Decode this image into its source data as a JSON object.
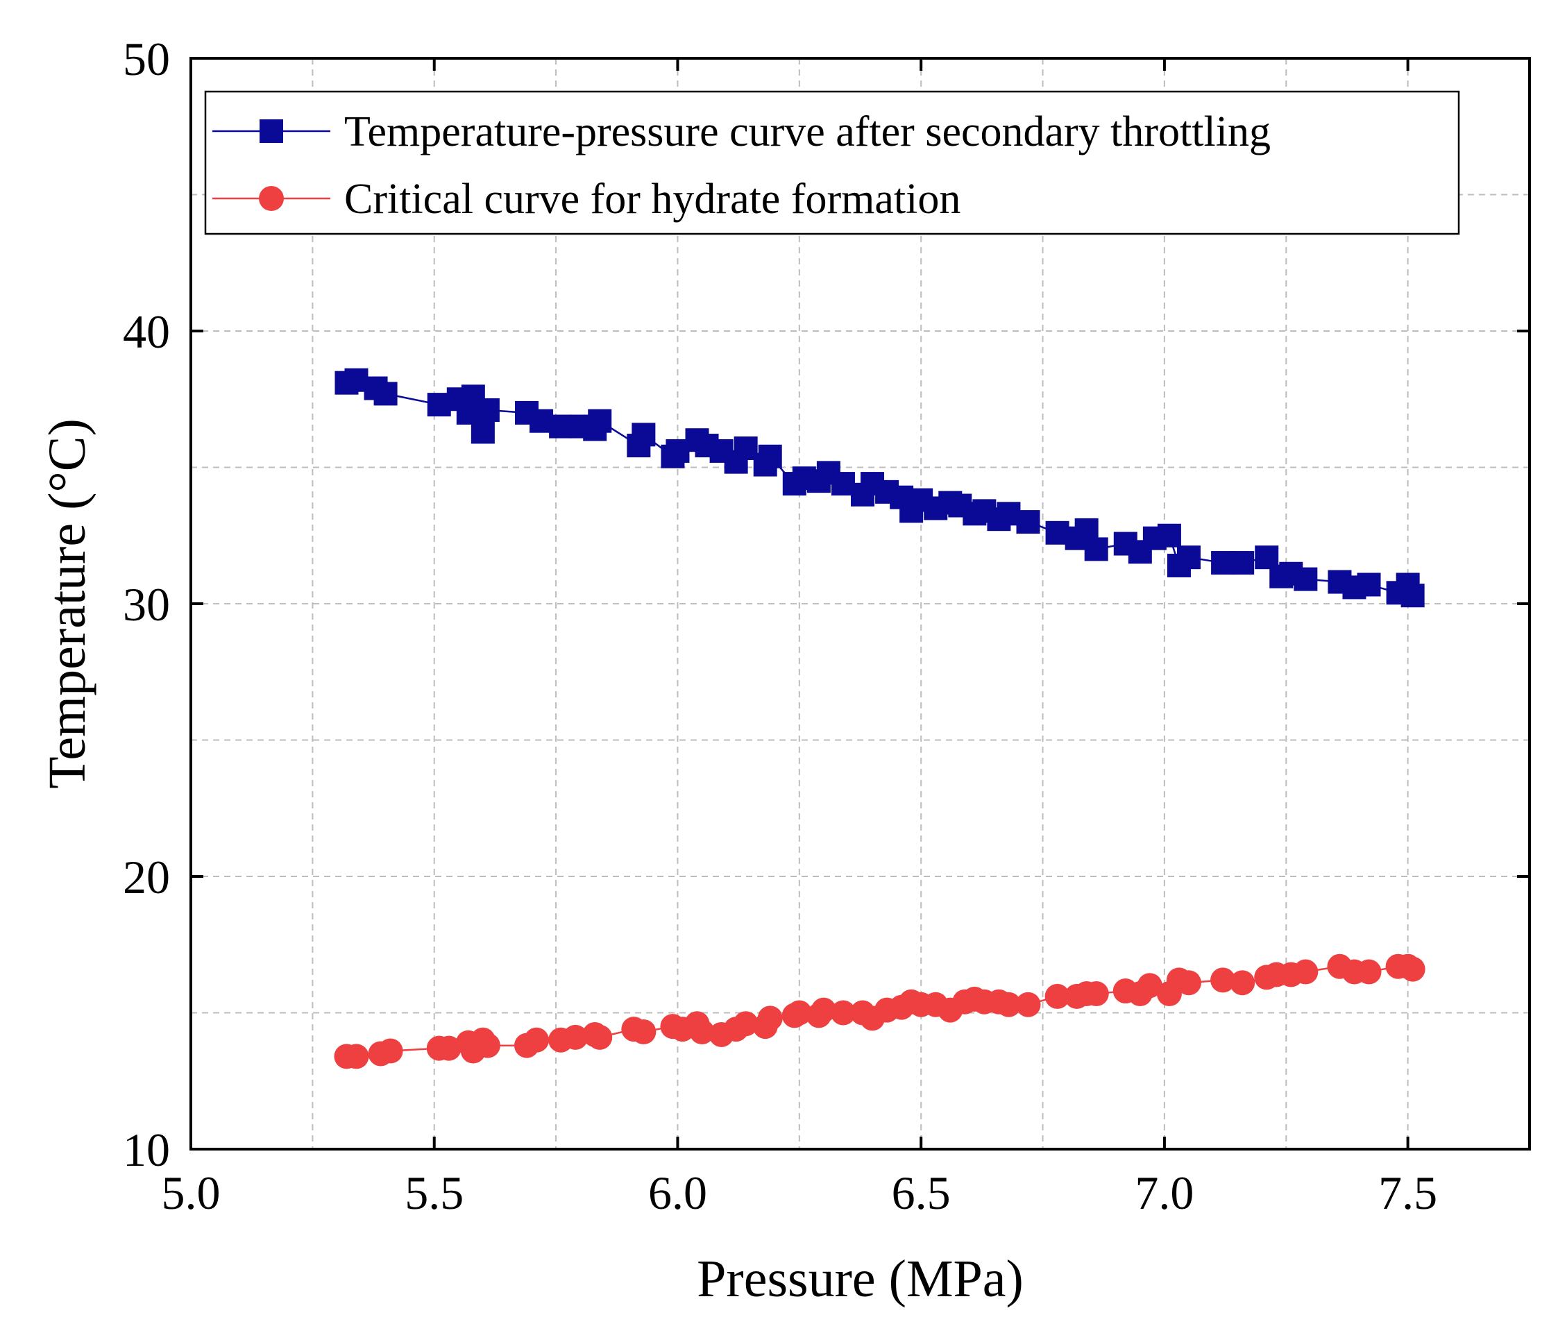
{
  "chart_data": {
    "type": "line",
    "title": "",
    "xlabel": "Pressure (MPa)",
    "ylabel": "Temperature (°C)",
    "xlim": [
      5.0,
      7.75
    ],
    "ylim": [
      10,
      50
    ],
    "x_ticks": [
      5.0,
      5.5,
      6.0,
      6.5,
      7.0,
      7.5
    ],
    "x_tick_labels": [
      "5.0",
      "5.5",
      "6.0",
      "6.5",
      "7.0",
      "7.5"
    ],
    "y_ticks": [
      10,
      20,
      30,
      40,
      50
    ],
    "y_tick_labels": [
      "10",
      "20",
      "30",
      "40",
      "50"
    ],
    "x_grid": [
      5.25,
      5.5,
      5.75,
      6.0,
      6.25,
      6.5,
      6.75,
      7.0,
      7.25,
      7.5
    ],
    "y_grid": [
      15,
      20,
      25,
      30,
      35,
      40,
      45
    ],
    "grid": true,
    "legend_position": "top",
    "series": [
      {
        "name": "Temperature-pressure curve after secondary throttling",
        "color": "#0a0a96",
        "marker": "square",
        "x": [
          5.32,
          5.34,
          5.38,
          5.4,
          5.51,
          5.55,
          5.57,
          5.58,
          5.6,
          5.61,
          5.69,
          5.72,
          5.76,
          5.8,
          5.83,
          5.84,
          5.92,
          5.93,
          5.99,
          6.0,
          6.04,
          6.06,
          6.09,
          6.12,
          6.14,
          6.18,
          6.19,
          6.24,
          6.26,
          6.29,
          6.31,
          6.34,
          6.38,
          6.4,
          6.43,
          6.46,
          6.48,
          6.5,
          6.53,
          6.56,
          6.58,
          6.61,
          6.63,
          6.66,
          6.68,
          6.72,
          6.78,
          6.82,
          6.84,
          6.86,
          6.92,
          6.95,
          6.98,
          7.01,
          7.03,
          7.05,
          7.12,
          7.16,
          7.21,
          7.24,
          7.26,
          7.29,
          7.36,
          7.39,
          7.42,
          7.48,
          7.5,
          7.51
        ],
        "values": [
          38.1,
          38.2,
          37.9,
          37.7,
          37.3,
          37.5,
          37.0,
          37.6,
          36.3,
          37.1,
          37.0,
          36.7,
          36.5,
          36.5,
          36.4,
          36.7,
          35.8,
          36.2,
          35.4,
          35.6,
          36.0,
          35.8,
          35.6,
          35.2,
          35.7,
          35.1,
          35.4,
          34.4,
          34.6,
          34.5,
          34.8,
          34.4,
          34.0,
          34.4,
          34.1,
          33.9,
          33.4,
          33.8,
          33.5,
          33.7,
          33.6,
          33.3,
          33.4,
          33.1,
          33.3,
          33.0,
          32.6,
          32.4,
          32.7,
          32.0,
          32.2,
          31.9,
          32.4,
          32.5,
          31.4,
          31.7,
          31.5,
          31.5,
          31.7,
          31.0,
          31.1,
          30.9,
          30.8,
          30.6,
          30.7,
          30.4,
          30.7,
          30.3
        ]
      },
      {
        "name": "Critical curve for hydrate formation",
        "color": "#ee4040",
        "marker": "circle",
        "x": [
          5.32,
          5.34,
          5.39,
          5.41,
          5.51,
          5.53,
          5.57,
          5.58,
          5.6,
          5.61,
          5.69,
          5.71,
          5.76,
          5.79,
          5.83,
          5.84,
          5.91,
          5.93,
          5.99,
          6.01,
          6.04,
          6.05,
          6.09,
          6.12,
          6.14,
          6.18,
          6.19,
          6.24,
          6.25,
          6.29,
          6.3,
          6.34,
          6.38,
          6.4,
          6.43,
          6.46,
          6.48,
          6.5,
          6.53,
          6.56,
          6.59,
          6.61,
          6.63,
          6.66,
          6.68,
          6.72,
          6.78,
          6.82,
          6.84,
          6.86,
          6.92,
          6.95,
          6.97,
          7.01,
          7.03,
          7.05,
          7.12,
          7.16,
          7.21,
          7.23,
          7.26,
          7.29,
          7.36,
          7.39,
          7.42,
          7.48,
          7.5,
          7.51
        ],
        "values": [
          13.4,
          13.4,
          13.5,
          13.6,
          13.7,
          13.7,
          13.9,
          13.6,
          14.0,
          13.8,
          13.8,
          14.0,
          14.0,
          14.1,
          14.2,
          14.1,
          14.4,
          14.3,
          14.5,
          14.4,
          14.6,
          14.3,
          14.2,
          14.4,
          14.6,
          14.5,
          14.8,
          14.9,
          15.0,
          14.9,
          15.1,
          15.0,
          15.0,
          14.8,
          15.1,
          15.2,
          15.4,
          15.3,
          15.3,
          15.1,
          15.4,
          15.5,
          15.4,
          15.4,
          15.3,
          15.3,
          15.6,
          15.6,
          15.7,
          15.7,
          15.8,
          15.7,
          16.0,
          15.7,
          16.2,
          16.1,
          16.2,
          16.1,
          16.3,
          16.4,
          16.4,
          16.5,
          16.7,
          16.5,
          16.5,
          16.7,
          16.7,
          16.6
        ]
      }
    ]
  }
}
